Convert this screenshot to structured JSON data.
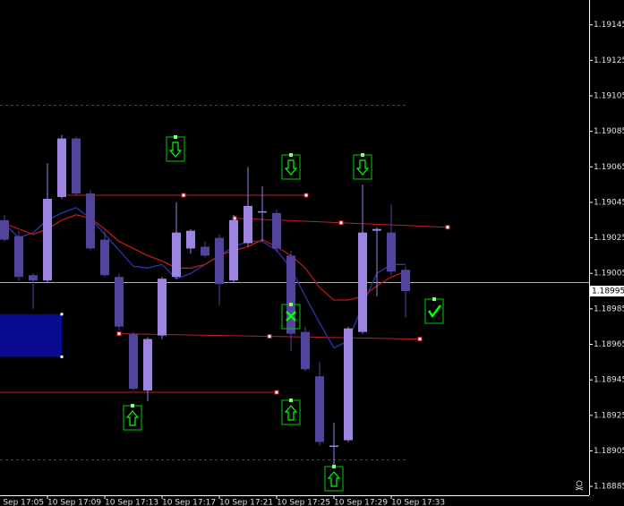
{
  "chart_data": {
    "type": "candlestick",
    "categories": [
      "10 Sep 17:05",
      null,
      null,
      null,
      "10 Sep 17:09",
      null,
      null,
      null,
      "10 Sep 17:13",
      null,
      null,
      null,
      "10 Sep 17:17",
      null,
      null,
      null,
      "10 Sep 17:21",
      null,
      null,
      null,
      "10 Sep 17:25",
      null,
      null,
      null,
      "10 Sep 17:29",
      null,
      null,
      null,
      "10 Sep 17:33",
      null
    ],
    "open": [
      null,
      1.19035,
      1.19026,
      1.19004,
      1.19001,
      1.19048,
      1.19081,
      1.1905,
      1.19024,
      1.19003,
      1.18971,
      1.18939,
      1.1897,
      1.19003,
      1.19019,
      1.1902,
      1.19025,
      1.19001,
      1.19022,
      1.1904,
      1.19039,
      1.19015,
      1.18972,
      1.18947,
      1.18908,
      1.18911,
      1.18972,
      1.19029,
      1.19028,
      1.19007
    ],
    "high": [
      null,
      1.19038,
      1.19029,
      1.19005,
      1.19067,
      1.19083,
      1.19082,
      1.19052,
      1.19029,
      1.19005,
      1.18972,
      1.18969,
      1.19003,
      1.19045,
      1.1903,
      1.19023,
      1.19027,
      1.19038,
      1.19065,
      1.19054,
      1.19041,
      1.19018,
      1.18975,
      1.18955,
      1.18921,
      1.18975,
      1.19055,
      1.19031,
      1.19044,
      1.19009
    ],
    "low": [
      null,
      1.19023,
      1.19001,
      1.18985,
      1.19,
      1.19047,
      1.19049,
      1.19018,
      1.19003,
      1.18973,
      1.18939,
      1.18933,
      1.18968,
      1.19002,
      1.19016,
      1.19014,
      1.18987,
      1.19,
      1.1902,
      1.19023,
      1.19017,
      1.18961,
      1.1895,
      1.18908,
      1.18897,
      1.1891,
      1.18971,
      1.18992,
      1.19004,
      1.1898
    ],
    "close": [
      null,
      1.19024,
      1.19003,
      1.19001,
      1.19047,
      1.19081,
      1.1905,
      1.19019,
      1.19004,
      1.18975,
      1.1894,
      1.18968,
      1.19002,
      1.19028,
      1.19029,
      1.19015,
      1.18999,
      1.19035,
      1.19043,
      1.1904,
      1.19019,
      1.18971,
      1.18951,
      1.1891,
      1.18908,
      1.18974,
      1.19028,
      1.1903,
      1.19006,
      1.18995
    ],
    "up_color": "#9c84e0",
    "down_color": "#52449c",
    "series": [
      {
        "color": "#2a35b0",
        "values": [
          null,
          1.19033,
          1.19025,
          1.19028,
          1.19035,
          1.19039,
          1.19042,
          1.19036,
          1.19027,
          1.19018,
          1.19009,
          1.19008,
          1.1901,
          1.19002,
          1.19005,
          1.1901,
          1.19015,
          1.1902,
          1.19023,
          1.19023,
          1.19018,
          1.19008,
          1.18992,
          1.18977,
          1.18963,
          1.18967,
          1.18987,
          1.19005,
          1.1901,
          1.1901
        ]
      },
      {
        "color": "#c01818",
        "values": [
          null,
          1.19033,
          1.1903,
          1.19027,
          1.1903,
          1.19035,
          1.19038,
          1.19036,
          1.1903,
          1.19023,
          1.19019,
          1.19015,
          1.19012,
          1.19008,
          1.19008,
          1.1901,
          1.19015,
          1.19018,
          1.1902,
          1.19024,
          1.1902,
          1.19015,
          1.19008,
          1.18997,
          1.1899,
          1.1899,
          1.18992,
          1.18998,
          1.19003,
          1.19006
        ]
      }
    ],
    "levels": [
      {
        "value": 1.191,
        "color": "#3c3c90",
        "dashed": true
      },
      {
        "value": 1.189,
        "color": "#3c3c90",
        "dashed": true
      },
      {
        "value": 1.19,
        "color": "#d8a868",
        "dashed": false
      }
    ],
    "trend_lines": [
      {
        "values": [
          1.19049,
          1.19049
        ],
        "color": "#c02020"
      },
      {
        "values": [
          1.19036,
          1.19031
        ],
        "color": "#c02020"
      },
      {
        "values": [
          1.18971,
          1.18968
        ],
        "color": "#c02020"
      },
      {
        "values": [
          1.18938,
          1.18938
        ],
        "color": "#c02020"
      }
    ],
    "zone": {
      "values": [
        1.18982,
        1.18958
      ],
      "color": "#0a0a90"
    },
    "current_price": 1.18995,
    "ylim": [
      1.1888,
      1.19159
    ],
    "yticks": [
      1.19145,
      1.19125,
      1.19105,
      1.19085,
      1.19065,
      1.19045,
      1.19025,
      1.19005,
      1.18985,
      1.18965,
      1.18945,
      1.18925,
      1.18905,
      1.18885
    ]
  }
}
